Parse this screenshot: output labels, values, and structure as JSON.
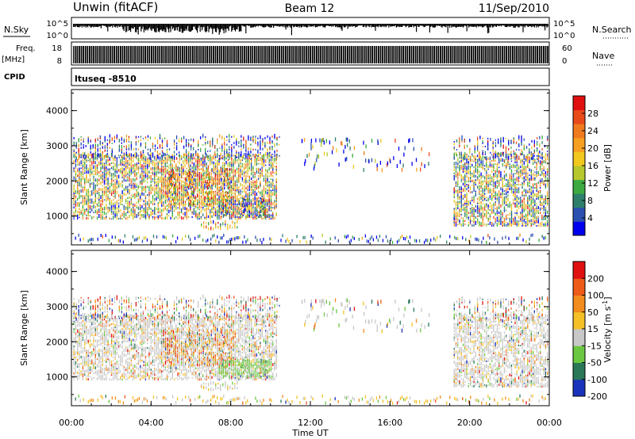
{
  "header": {
    "radar": "Unwin (fitACF)",
    "beam": "Beam 12",
    "date": "11/Sep/2010"
  },
  "labels": {
    "nsky": "N.Sky",
    "nsky_hi": "10^5",
    "nsky_lo": "10^0",
    "nsearch": "N.Search",
    "nsearch_hi": "10^5",
    "nsearch_lo": "10^0",
    "freq": "Freq.",
    "freq_unit": "[MHz]",
    "freq_hi": "18",
    "freq_lo": "8",
    "nave": "Nave",
    "nave_hi": "60",
    "nave_lo": "0",
    "cpid": "CPID",
    "cpid_value": "ltuseq -8510"
  },
  "chart_data": {
    "type": "heatmap",
    "x_ticks": [
      "00:00",
      "04:00",
      "08:00",
      "12:00",
      "16:00",
      "20:00",
      "00:00"
    ],
    "x_range_hours": [
      0,
      24
    ],
    "xlabel": "Time UT",
    "ylabel": "Slant Range [km]",
    "y_ticks": [
      "1000",
      "2000",
      "3000",
      "4000"
    ],
    "y_range_km": [
      180,
      4600
    ],
    "power_colorbar": {
      "label": "Power [dB]",
      "ticks": [
        "4",
        "8",
        "12",
        "16",
        "20",
        "24",
        "28"
      ],
      "range": [
        0,
        32
      ],
      "colors": [
        "#0000ee",
        "#2a4fb0",
        "#2e7f6c",
        "#3caa40",
        "#b6c82c",
        "#f2c81e",
        "#f5a020",
        "#f07a1e",
        "#e84a1a",
        "#e01010"
      ]
    },
    "velocity_colorbar": {
      "label": "Velocity [m s^-1]",
      "ticks": [
        "200",
        "100",
        "50",
        "15",
        "-15",
        "-50",
        "-100",
        "-200"
      ],
      "colors": [
        "#1a33bb",
        "#2a7858",
        "#6cc840",
        "#c8c8c8",
        "#f4c026",
        "#f28c1c",
        "#ee5a18",
        "#e01010"
      ]
    }
  }
}
